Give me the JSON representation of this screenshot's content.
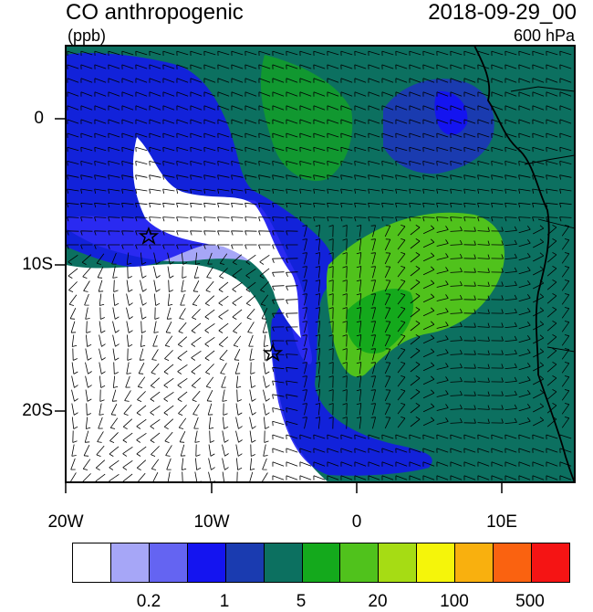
{
  "header": {
    "title": "CO anthropogenic",
    "units": "(ppb)",
    "datetime": "2018-09-29_00",
    "level": "600 hPa"
  },
  "map": {
    "lon_range": [
      -20,
      15
    ],
    "lat_range": [
      -25,
      5
    ],
    "lon_ticks": [
      "20W",
      "10W",
      "0",
      "10E"
    ],
    "lat_ticks": [
      "0",
      "10S",
      "20S"
    ],
    "markers": [
      {
        "type": "star",
        "lon": -14.4,
        "lat": -8.0
      },
      {
        "type": "star",
        "lon": -5.7,
        "lat": -15.9
      }
    ]
  },
  "colorbar": {
    "colors": [
      "#ffffff",
      "#a6a6f7",
      "#6464f2",
      "#1414f0",
      "#1a3bb0",
      "#0c7060",
      "#14a91c",
      "#50c21c",
      "#a6dc14",
      "#f5f50a",
      "#f9b00e",
      "#fa6210",
      "#f51414"
    ],
    "labels": [
      "0.2",
      "1",
      "5",
      "20",
      "100",
      "500"
    ]
  }
}
